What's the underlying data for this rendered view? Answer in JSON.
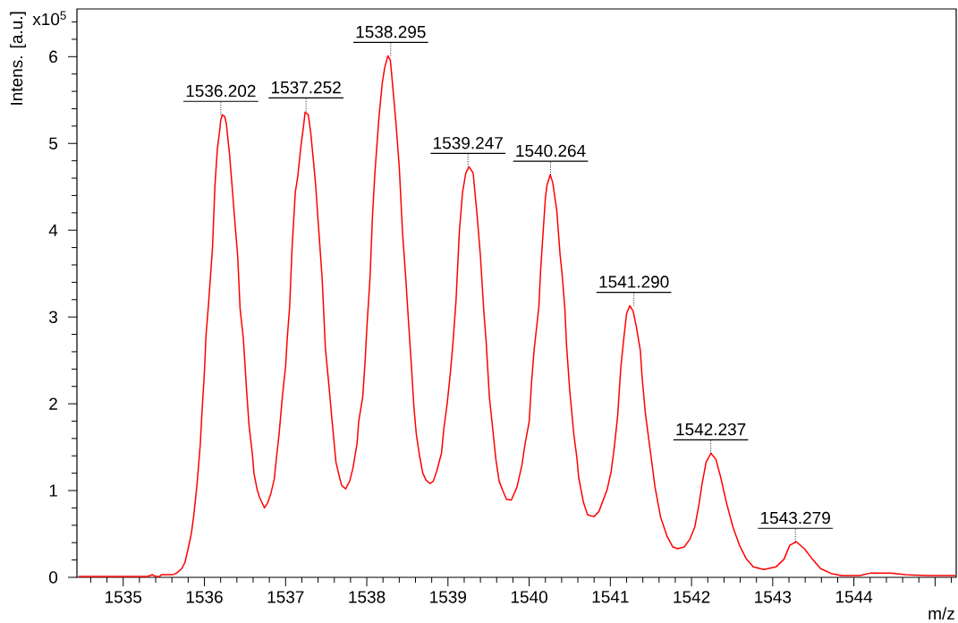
{
  "chart_data": {
    "type": "line",
    "xlabel": "m/z",
    "ylabel": "Intens. [a.u.]",
    "annotations": [
      "x10$^{5}$",
      {
        "text": "1536.202",
        "x": 1536.202,
        "y": 5.33
      },
      {
        "text": "1537.252",
        "x": 1537.252,
        "y": 5.37
      },
      {
        "text": "1538.295",
        "x": 1538.295,
        "y": 6.01
      },
      {
        "text": "1539.247",
        "x": 1539.247,
        "y": 4.73
      },
      {
        "text": "1540.264",
        "x": 1540.264,
        "y": 4.64
      },
      {
        "text": "1541.290",
        "x": 1541.29,
        "y": 3.13
      },
      {
        "text": "1542.237",
        "x": 1542.237,
        "y": 1.43
      },
      {
        "text": "1543.279",
        "x": 1543.279,
        "y": 0.41
      }
    ],
    "x": [
      1534.45,
      1535.3,
      1535.36,
      1535.4,
      1535.45,
      1535.47,
      1535.61,
      1535.66,
      1535.72,
      1535.76,
      1535.8,
      1535.84,
      1535.87,
      1535.91,
      1535.95,
      1535.97,
      1536.0,
      1536.02,
      1536.05,
      1536.1,
      1536.13,
      1536.16,
      1536.19,
      1536.2,
      1536.22,
      1536.25,
      1536.27,
      1536.31,
      1536.34,
      1536.37,
      1536.41,
      1536.44,
      1536.48,
      1536.52,
      1536.55,
      1536.59,
      1536.61,
      1536.65,
      1536.68,
      1536.74,
      1536.78,
      1536.82,
      1536.86,
      1536.89,
      1536.92,
      1536.96,
      1537.0,
      1537.02,
      1537.05,
      1537.08,
      1537.12,
      1537.15,
      1537.19,
      1537.22,
      1537.24,
      1537.28,
      1537.31,
      1537.35,
      1537.37,
      1537.41,
      1537.45,
      1537.49,
      1537.53,
      1537.57,
      1537.62,
      1537.66,
      1537.69,
      1537.74,
      1537.79,
      1537.83,
      1537.88,
      1537.9,
      1537.95,
      1537.98,
      1538.0,
      1538.04,
      1538.07,
      1538.1,
      1538.15,
      1538.19,
      1538.22,
      1538.26,
      1538.29,
      1538.31,
      1538.36,
      1538.4,
      1538.44,
      1538.48,
      1538.52,
      1538.55,
      1538.58,
      1538.61,
      1538.65,
      1538.69,
      1538.73,
      1538.78,
      1538.82,
      1538.86,
      1538.92,
      1538.95,
      1538.99,
      1539.03,
      1539.06,
      1539.1,
      1539.14,
      1539.18,
      1539.22,
      1539.26,
      1539.31,
      1539.36,
      1539.4,
      1539.44,
      1539.47,
      1539.51,
      1539.55,
      1539.59,
      1539.63,
      1539.67,
      1539.72,
      1539.78,
      1539.85,
      1539.91,
      1539.95,
      1540.0,
      1540.03,
      1540.06,
      1540.12,
      1540.14,
      1540.17,
      1540.2,
      1540.22,
      1540.26,
      1540.29,
      1540.34,
      1540.38,
      1540.41,
      1540.44,
      1540.46,
      1540.5,
      1540.55,
      1540.59,
      1540.61,
      1540.67,
      1540.72,
      1540.8,
      1540.86,
      1540.9,
      1540.96,
      1541.01,
      1541.05,
      1541.09,
      1541.13,
      1541.17,
      1541.2,
      1541.24,
      1541.28,
      1541.32,
      1541.37,
      1541.39,
      1541.43,
      1541.5,
      1541.55,
      1541.62,
      1541.7,
      1541.77,
      1541.83,
      1541.91,
      1541.98,
      1542.04,
      1542.09,
      1542.13,
      1542.18,
      1542.24,
      1542.3,
      1542.36,
      1542.43,
      1542.51,
      1542.59,
      1542.67,
      1542.76,
      1542.89,
      1543.04,
      1543.14,
      1543.21,
      1543.29,
      1543.39,
      1543.48,
      1543.59,
      1543.73,
      1543.85,
      1544.07,
      1544.21,
      1544.45,
      1544.64,
      1544.91,
      1545.25
    ],
    "values": [
      0.01,
      0.01,
      0.03,
      0.01,
      0.01,
      0.03,
      0.03,
      0.05,
      0.1,
      0.17,
      0.33,
      0.51,
      0.72,
      1.08,
      1.54,
      1.9,
      2.36,
      2.79,
      3.14,
      3.8,
      4.52,
      4.94,
      5.16,
      5.26,
      5.33,
      5.31,
      5.23,
      4.87,
      4.52,
      4.16,
      3.7,
      3.09,
      2.75,
      2.15,
      1.75,
      1.43,
      1.2,
      1.01,
      0.92,
      0.8,
      0.86,
      0.97,
      1.13,
      1.4,
      1.65,
      2.08,
      2.43,
      2.75,
      3.12,
      3.8,
      4.44,
      4.62,
      4.98,
      5.19,
      5.36,
      5.33,
      5.12,
      4.73,
      4.52,
      3.98,
      3.45,
      2.64,
      2.25,
      1.83,
      1.33,
      1.17,
      1.06,
      1.02,
      1.11,
      1.26,
      1.54,
      1.79,
      2.08,
      2.5,
      2.86,
      3.45,
      4.16,
      4.66,
      5.3,
      5.69,
      5.87,
      6.01,
      5.96,
      5.76,
      5.23,
      4.73,
      3.98,
      3.45,
      2.86,
      2.43,
      1.97,
      1.65,
      1.4,
      1.2,
      1.12,
      1.08,
      1.11,
      1.22,
      1.43,
      1.72,
      2.0,
      2.36,
      2.68,
      3.2,
      3.98,
      4.44,
      4.66,
      4.73,
      4.66,
      4.16,
      3.7,
      3.09,
      2.72,
      2.08,
      1.72,
      1.36,
      1.11,
      1.01,
      0.9,
      0.89,
      1.04,
      1.29,
      1.54,
      1.79,
      2.25,
      2.61,
      3.12,
      3.52,
      3.95,
      4.37,
      4.52,
      4.64,
      4.55,
      4.23,
      3.73,
      3.45,
      3.09,
      2.68,
      2.15,
      1.65,
      1.36,
      1.15,
      0.86,
      0.72,
      0.7,
      0.76,
      0.86,
      1.01,
      1.22,
      1.51,
      1.86,
      2.43,
      2.79,
      3.04,
      3.13,
      3.07,
      2.89,
      2.61,
      2.32,
      1.9,
      1.4,
      1.04,
      0.69,
      0.47,
      0.35,
      0.33,
      0.35,
      0.44,
      0.58,
      0.83,
      1.08,
      1.33,
      1.43,
      1.36,
      1.15,
      0.86,
      0.58,
      0.37,
      0.22,
      0.12,
      0.09,
      0.12,
      0.21,
      0.37,
      0.41,
      0.33,
      0.22,
      0.1,
      0.04,
      0.02,
      0.02,
      0.05,
      0.05,
      0.03,
      0.02,
      0.02
    ],
    "color": "#ff0000",
    "line_style": "solid",
    "xlim": [
      1534.43,
      1545.26
    ],
    "ylim": [
      0,
      6.55
    ],
    "xticks": [
      1535,
      1536,
      1537,
      1538,
      1539,
      1540,
      1541,
      1542,
      1543,
      1544,
      {
        "value": 1545,
        "label": null
      }
    ],
    "yticks": [
      0,
      1,
      2,
      3,
      4,
      5,
      6
    ]
  }
}
